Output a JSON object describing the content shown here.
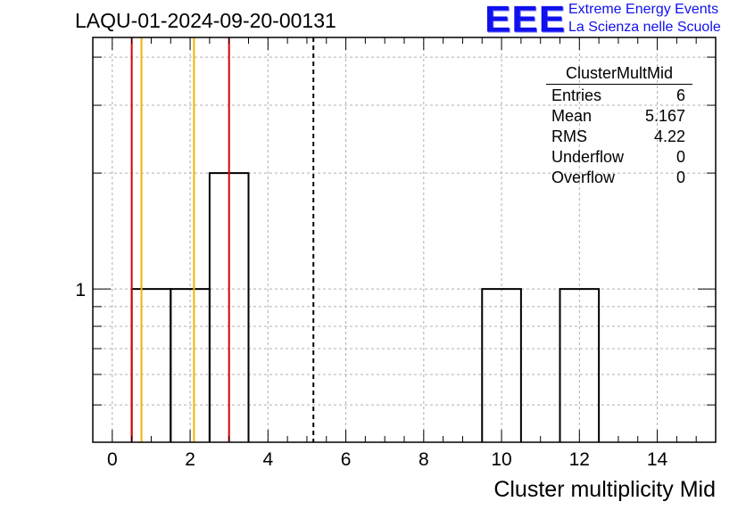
{
  "header": {
    "title": "LAQU-01-2024-09-20-00131",
    "logo_text": "EEE",
    "logo_line1": "Extreme Energy Events",
    "logo_line2": "La Scienza nelle Scuole"
  },
  "stats": {
    "title": "ClusterMultMid",
    "rows": [
      {
        "label": "Entries",
        "value": "6"
      },
      {
        "label": "Mean",
        "value": "5.167"
      },
      {
        "label": "RMS",
        "value": "4.22"
      },
      {
        "label": "Underflow",
        "value": "0"
      },
      {
        "label": "Overflow",
        "value": "0"
      }
    ]
  },
  "colors": {
    "histogram": "#000000",
    "red_line": "#dd0000",
    "orange_line": "#f0b400",
    "grid": "#b0b0b0"
  },
  "chart_data": {
    "type": "bar",
    "title": "LAQU-01-2024-09-20-00131",
    "xlabel": "Cluster multiplicity Mid",
    "ylabel": "",
    "xlim": [
      -0.5,
      15.5
    ],
    "ylim": [
      0.4,
      4.5
    ],
    "yscale": "log",
    "grid": true,
    "x_ticks": [
      0,
      2,
      4,
      6,
      8,
      10,
      12,
      14
    ],
    "y_tick_labels": [
      {
        "value": 1,
        "label": "1"
      }
    ],
    "bins": [
      {
        "low": 0.5,
        "high": 1.5,
        "count": 1
      },
      {
        "low": 1.5,
        "high": 2.5,
        "count": 1
      },
      {
        "low": 2.5,
        "high": 3.5,
        "count": 2
      },
      {
        "low": 9.5,
        "high": 10.5,
        "count": 1
      },
      {
        "low": 11.5,
        "high": 12.5,
        "count": 1
      }
    ],
    "vertical_lines": [
      {
        "x": 0.5,
        "color": "red",
        "style": "solid"
      },
      {
        "x": 0.75,
        "color": "orange",
        "style": "solid"
      },
      {
        "x": 2.1,
        "color": "orange",
        "style": "solid"
      },
      {
        "x": 3.0,
        "color": "red",
        "style": "solid"
      },
      {
        "x": 5.167,
        "color": "black",
        "style": "dashed"
      }
    ]
  }
}
